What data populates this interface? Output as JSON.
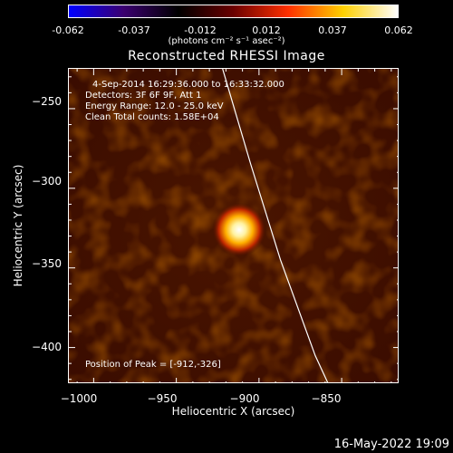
{
  "colorbar": {
    "ticks": [
      "-0.062",
      "-0.037",
      "-0.012",
      "0.012",
      "0.037",
      "0.062"
    ],
    "units": "(photons cm⁻² s⁻¹ asec⁻²)",
    "colors": [
      "#0000ff",
      "#3b0070",
      "#000000",
      "#6a0000",
      "#ff3000",
      "#ffd000",
      "#ffffff"
    ]
  },
  "title": "Reconstructed RHESSI Image",
  "info": {
    "line1": "4-Sep-2014 16:29:36.000 to 16:33:32.000",
    "line2": "Detectors: 3F 6F 9F, Att 1",
    "line3": "Energy Range: 12.0 - 25.0 keV",
    "line4": "Clean    Total counts: 1.58E+04",
    "peak": "Position of Peak = [-912,-326]"
  },
  "chart_data": {
    "type": "heatmap",
    "title": "Reconstructed RHESSI Image",
    "xlabel": "Heliocentric X (arcsec)",
    "ylabel": "Heliocentric Y (arcsec)",
    "xlim": [
      -1015,
      -815
    ],
    "ylim": [
      -423,
      -225
    ],
    "x_ticks": [
      -1000,
      -950,
      -900,
      -850
    ],
    "y_ticks": [
      -250,
      -300,
      -350,
      -400
    ],
    "x_tick_labels": [
      "−1000",
      "−950",
      "−900",
      "−850"
    ],
    "y_tick_labels": [
      "−250",
      "−300",
      "−350",
      "−400"
    ],
    "peak": {
      "x": -912,
      "y": -326
    },
    "limb_color": "#ffffff"
  },
  "footer": {
    "date": "16-May-2022 19:09"
  }
}
